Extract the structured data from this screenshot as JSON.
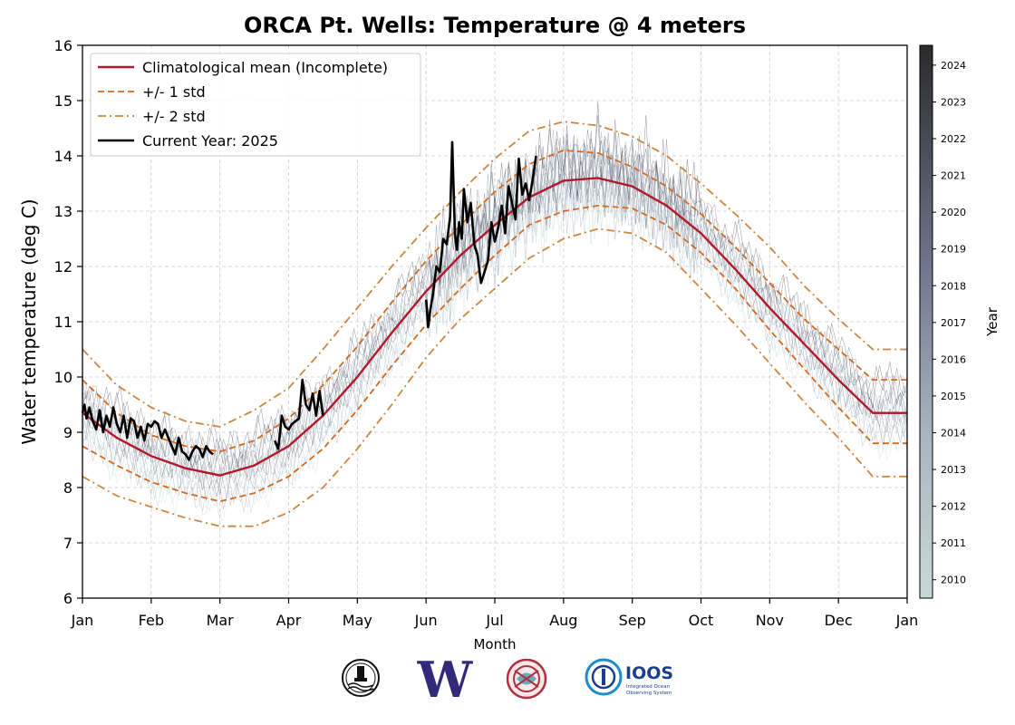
{
  "chart_data": {
    "type": "line",
    "title": "ORCA Pt. Wells: Temperature @ 4 meters",
    "xlabel": "Month",
    "ylabel": "Water temperature (deg C)",
    "ylim": [
      6,
      16
    ],
    "yticks": [
      6,
      7,
      8,
      9,
      10,
      11,
      12,
      13,
      14,
      15,
      16
    ],
    "xticks": [
      "Jan",
      "Feb",
      "Mar",
      "Apr",
      "May",
      "Jun",
      "Jul",
      "Aug",
      "Sep",
      "Oct",
      "Nov",
      "Dec",
      "Jan"
    ],
    "grid": true,
    "legend_position": "top-left",
    "legend": [
      {
        "label": "Climatological mean (Incomplete)",
        "color": "#b2182b",
        "style": "solid"
      },
      {
        "label": "+/- 1 std",
        "color": "#d2691e",
        "style": "dashed"
      },
      {
        "label": "+/- 2 std",
        "color": "#cd853f",
        "style": "dashdot"
      },
      {
        "label": "Current Year: 2025",
        "color": "#000000",
        "style": "solid"
      }
    ],
    "colorbar": {
      "label": "Year",
      "ticks": [
        "2010",
        "2011",
        "2012",
        "2013",
        "2014",
        "2015",
        "2016",
        "2017",
        "2018",
        "2019",
        "2020",
        "2021",
        "2022",
        "2023",
        "2024"
      ],
      "color_low": "#c8d8d6",
      "color_high": "#2b2b2b"
    },
    "climatology": {
      "x_month": [
        0,
        0.5,
        1,
        1.5,
        2,
        2.5,
        3,
        3.5,
        4,
        4.5,
        5,
        5.5,
        6,
        6.5,
        7,
        7.5,
        8,
        8.5,
        9,
        9.5,
        10,
        10.5,
        11,
        11.5,
        12
      ],
      "mean": [
        9.35,
        8.9,
        8.57,
        8.35,
        8.22,
        8.4,
        8.75,
        9.3,
        10.0,
        10.8,
        11.55,
        12.2,
        12.75,
        13.25,
        13.55,
        13.6,
        13.45,
        13.1,
        12.6,
        11.95,
        11.25,
        10.6,
        9.95,
        9.35,
        9.35
      ],
      "std1_upper": [
        9.95,
        9.35,
        8.95,
        8.75,
        8.65,
        8.85,
        9.25,
        9.85,
        10.55,
        11.35,
        12.1,
        12.75,
        13.35,
        13.85,
        14.1,
        14.05,
        13.8,
        13.45,
        12.95,
        12.35,
        11.7,
        11.05,
        10.5,
        9.95,
        9.95
      ],
      "std1_lower": [
        8.75,
        8.4,
        8.1,
        7.9,
        7.75,
        7.9,
        8.2,
        8.7,
        9.4,
        10.2,
        10.95,
        11.6,
        12.2,
        12.75,
        13.0,
        13.1,
        13.05,
        12.75,
        12.25,
        11.6,
        10.85,
        10.15,
        9.45,
        8.8,
        8.8
      ],
      "std2_upper": [
        10.5,
        9.85,
        9.45,
        9.2,
        9.1,
        9.4,
        9.8,
        10.5,
        11.25,
        12.0,
        12.7,
        13.35,
        13.95,
        14.45,
        14.62,
        14.55,
        14.35,
        14.0,
        13.5,
        12.95,
        12.35,
        11.65,
        11.05,
        10.5,
        10.5
      ],
      "std2_lower": [
        8.2,
        7.85,
        7.65,
        7.45,
        7.3,
        7.3,
        7.55,
        8.0,
        8.7,
        9.5,
        10.35,
        11.05,
        11.6,
        12.15,
        12.5,
        12.68,
        12.6,
        12.25,
        11.6,
        10.95,
        10.25,
        9.55,
        8.9,
        8.2,
        8.2
      ]
    },
    "current_year": {
      "name": "Current Year: 2025",
      "segments": [
        {
          "x_month": [
            0.0,
            0.03,
            0.06,
            0.1,
            0.15,
            0.2,
            0.25,
            0.3,
            0.35,
            0.4,
            0.45,
            0.5,
            0.55,
            0.6,
            0.65,
            0.7,
            0.75,
            0.8,
            0.85,
            0.9,
            0.95,
            1.0,
            1.05,
            1.1,
            1.15,
            1.2,
            1.25,
            1.3,
            1.35,
            1.4,
            1.45,
            1.5,
            1.55,
            1.6,
            1.65,
            1.7,
            1.75,
            1.8,
            1.85,
            1.9
          ],
          "y": [
            9.35,
            9.5,
            9.25,
            9.45,
            9.2,
            9.05,
            9.4,
            9.0,
            9.3,
            9.1,
            9.45,
            9.15,
            9.0,
            9.3,
            8.9,
            9.25,
            9.2,
            8.9,
            9.1,
            8.85,
            9.15,
            9.1,
            9.2,
            9.15,
            8.9,
            9.05,
            8.9,
            8.75,
            8.6,
            8.9,
            8.65,
            8.6,
            8.5,
            8.65,
            8.75,
            8.7,
            8.55,
            8.75,
            8.65,
            8.6
          ]
        },
        {
          "x_month": [
            2.8,
            2.85,
            2.9,
            2.95,
            3.0,
            3.05,
            3.1,
            3.15,
            3.2,
            3.25,
            3.3,
            3.35,
            3.4,
            3.45,
            3.5
          ],
          "y": [
            8.85,
            8.7,
            9.3,
            9.1,
            9.05,
            9.15,
            9.2,
            9.25,
            9.95,
            9.5,
            9.4,
            9.7,
            9.3,
            9.75,
            9.3
          ]
        },
        {
          "x_month": [
            5.0,
            5.03,
            5.06,
            5.1,
            5.15,
            5.2,
            5.25,
            5.3,
            5.35,
            5.38,
            5.42,
            5.45,
            5.48,
            5.52,
            5.55,
            5.6,
            5.65,
            5.7,
            5.75,
            5.8,
            5.85,
            5.9,
            5.95,
            6.0,
            6.05,
            6.1,
            6.15,
            6.2,
            6.25,
            6.3,
            6.35,
            6.4,
            6.45,
            6.5,
            6.55,
            6.6
          ],
          "y": [
            11.4,
            10.9,
            11.2,
            11.5,
            12.0,
            11.9,
            12.5,
            12.4,
            12.9,
            14.25,
            12.6,
            12.3,
            12.8,
            12.5,
            13.4,
            12.8,
            13.15,
            12.4,
            12.2,
            11.7,
            11.9,
            12.1,
            12.8,
            12.45,
            12.7,
            13.1,
            12.6,
            13.45,
            13.15,
            12.85,
            13.95,
            13.3,
            13.5,
            13.2,
            13.55,
            14.0
          ]
        }
      ]
    }
  },
  "logos": [
    {
      "name": "orca-buoy-logo",
      "text": ""
    },
    {
      "name": "uw-logo",
      "text": "W"
    },
    {
      "name": "nanoos-logo",
      "text": ""
    },
    {
      "name": "ioos-logo",
      "text": "IOOS",
      "subtext": "Integrated Ocean Observing System"
    }
  ]
}
